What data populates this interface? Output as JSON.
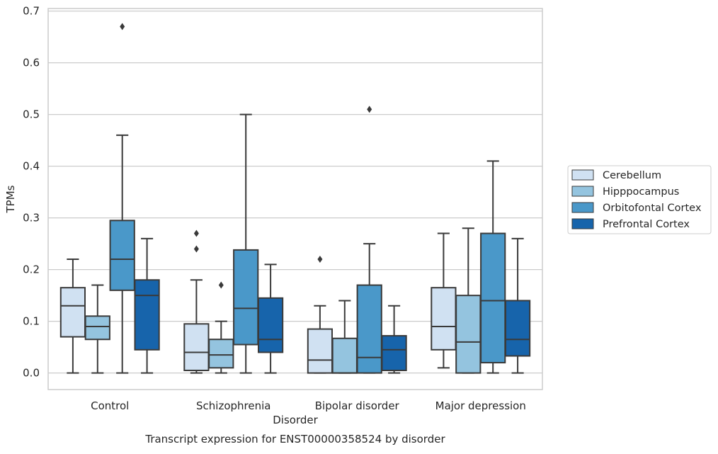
{
  "chart_data": {
    "type": "box",
    "caption": "Transcript expression for ENST00000358524 by disorder",
    "xlabel": "Disorder",
    "ylabel": "TPMs",
    "ylim": [
      -0.032,
      0.705
    ],
    "yticks": [
      0.0,
      0.1,
      0.2,
      0.3,
      0.4,
      0.5,
      0.6,
      0.7
    ],
    "ytick_labels": [
      "0.0",
      "0.1",
      "0.2",
      "0.3",
      "0.4",
      "0.5",
      "0.6",
      "0.7"
    ],
    "grid": "horizontal",
    "legend_position": "right",
    "categories": [
      "Control",
      "Schizophrenia",
      "Bipolar disorder",
      "Major depression"
    ],
    "series": [
      {
        "name": "Cerebellum",
        "color": "#d0e1f2",
        "boxes": [
          {
            "whislo": 0.0,
            "q1": 0.07,
            "med": 0.13,
            "q3": 0.165,
            "whishi": 0.22,
            "fliers": []
          },
          {
            "whislo": 0.0,
            "q1": 0.005,
            "med": 0.04,
            "q3": 0.095,
            "whishi": 0.18,
            "fliers": [
              0.24,
              0.27
            ]
          },
          {
            "whislo": 0.0,
            "q1": 0.0,
            "med": 0.025,
            "q3": 0.085,
            "whishi": 0.13,
            "fliers": [
              0.22
            ]
          },
          {
            "whislo": 0.01,
            "q1": 0.045,
            "med": 0.09,
            "q3": 0.165,
            "whishi": 0.27,
            "fliers": []
          }
        ]
      },
      {
        "name": "Hipppocampus",
        "color": "#94c4df",
        "boxes": [
          {
            "whislo": 0.0,
            "q1": 0.065,
            "med": 0.09,
            "q3": 0.11,
            "whishi": 0.17,
            "fliers": []
          },
          {
            "whislo": 0.0,
            "q1": 0.01,
            "med": 0.035,
            "q3": 0.065,
            "whishi": 0.1,
            "fliers": [
              0.17
            ]
          },
          {
            "whislo": 0.0,
            "q1": 0.0,
            "med": 0.0,
            "q3": 0.067,
            "whishi": 0.14,
            "fliers": []
          },
          {
            "whislo": 0.0,
            "q1": 0.0,
            "med": 0.06,
            "q3": 0.15,
            "whishi": 0.28,
            "fliers": []
          }
        ]
      },
      {
        "name": "Orbitofontal Cortex",
        "color": "#4a98c9",
        "boxes": [
          {
            "whislo": 0.0,
            "q1": 0.16,
            "med": 0.22,
            "q3": 0.295,
            "whishi": 0.46,
            "fliers": [
              0.67
            ]
          },
          {
            "whislo": 0.0,
            "q1": 0.055,
            "med": 0.125,
            "q3": 0.238,
            "whishi": 0.5,
            "fliers": []
          },
          {
            "whislo": 0.0,
            "q1": 0.0,
            "med": 0.03,
            "q3": 0.17,
            "whishi": 0.25,
            "fliers": [
              0.51
            ]
          },
          {
            "whislo": 0.0,
            "q1": 0.02,
            "med": 0.14,
            "q3": 0.27,
            "whishi": 0.41,
            "fliers": []
          }
        ]
      },
      {
        "name": "Prefrontal Cortex",
        "color": "#1764ab",
        "boxes": [
          {
            "whislo": 0.0,
            "q1": 0.045,
            "med": 0.15,
            "q3": 0.18,
            "whishi": 0.26,
            "fliers": []
          },
          {
            "whislo": 0.0,
            "q1": 0.04,
            "med": 0.065,
            "q3": 0.145,
            "whishi": 0.21,
            "fliers": []
          },
          {
            "whislo": 0.0,
            "q1": 0.005,
            "med": 0.045,
            "q3": 0.072,
            "whishi": 0.13,
            "fliers": []
          },
          {
            "whislo": 0.0,
            "q1": 0.033,
            "med": 0.065,
            "q3": 0.14,
            "whishi": 0.26,
            "fliers": []
          }
        ]
      }
    ]
  }
}
